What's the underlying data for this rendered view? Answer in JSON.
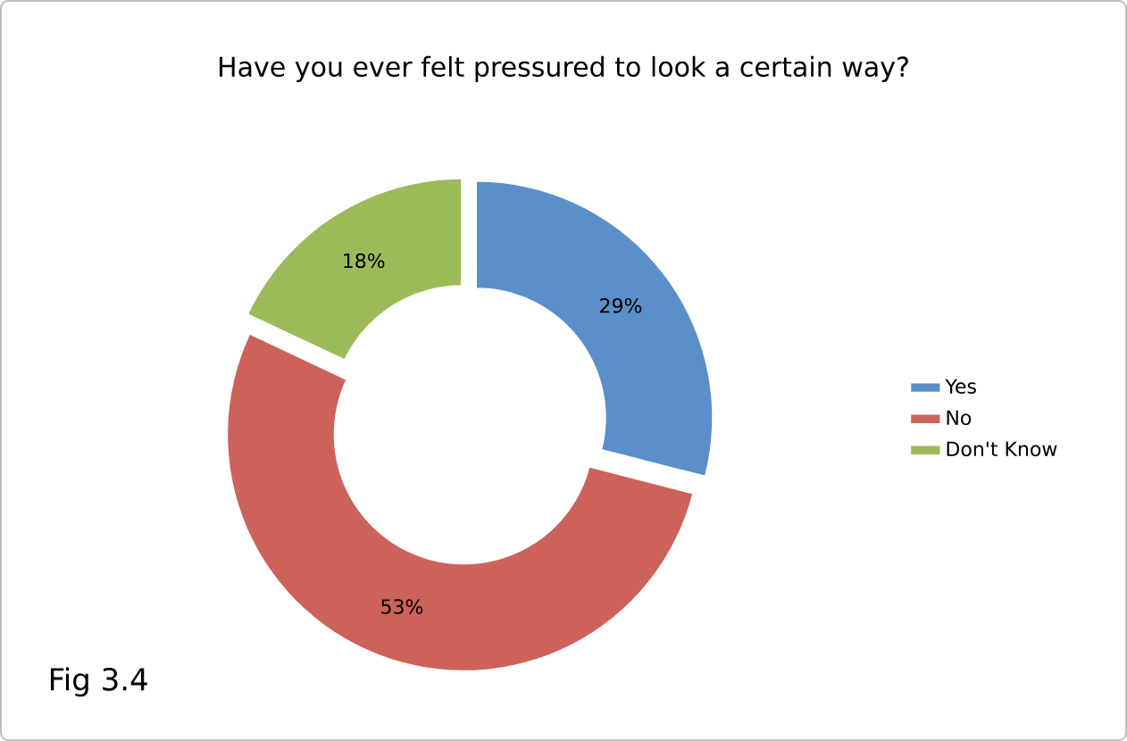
{
  "chart_data": {
    "type": "donut",
    "title": "Have you ever felt pressured to look a certain way?",
    "categories": [
      "Yes",
      "No",
      "Don't Know"
    ],
    "values": [
      29,
      53,
      18
    ],
    "value_labels": [
      "29%",
      "53%",
      "18%"
    ],
    "colors": [
      "#5b8fc9",
      "#cc625a",
      "#9bbb59"
    ],
    "legend": "right",
    "annotations": [
      "Fig 3.4"
    ]
  }
}
